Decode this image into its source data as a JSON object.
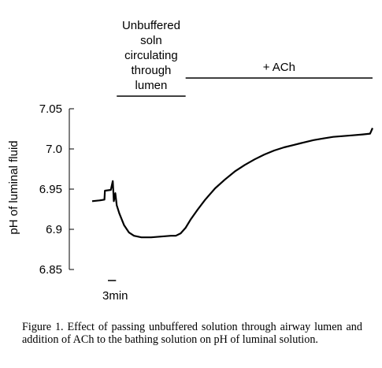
{
  "chart_data": {
    "type": "line",
    "ylabel": "pH of luminal fluid",
    "yticks": [
      "7.05",
      "7.0",
      "6.95",
      "6.9",
      "6.85"
    ],
    "ytick_values": [
      7.05,
      7.0,
      6.95,
      6.9,
      6.85
    ],
    "ylim": [
      6.85,
      7.05
    ],
    "xlim_min": [
      0,
      57
    ],
    "scale_bar": {
      "label": "3min",
      "minutes": 3
    },
    "annotations": [
      {
        "label_lines": [
          "Unbuffered",
          "soln",
          "circulating",
          "through",
          "lumen"
        ],
        "start_min": 5,
        "end_min": 19
      },
      {
        "label_lines": [
          "+ ACh"
        ],
        "start_min": 19,
        "end_min": 57
      }
    ],
    "series": [
      {
        "values_min_ph": [
          [
            0.0,
            6.935
          ],
          [
            1.5,
            6.936
          ],
          [
            2.5,
            6.937
          ],
          [
            2.6,
            6.948
          ],
          [
            3.8,
            6.949
          ],
          [
            4.2,
            6.96
          ],
          [
            4.4,
            6.935
          ],
          [
            4.7,
            6.945
          ],
          [
            5.0,
            6.93
          ],
          [
            5.5,
            6.92
          ],
          [
            6.5,
            6.905
          ],
          [
            7.5,
            6.896
          ],
          [
            8.5,
            6.892
          ],
          [
            10,
            6.89
          ],
          [
            12,
            6.89
          ],
          [
            14,
            6.891
          ],
          [
            16,
            6.892
          ],
          [
            17,
            6.892
          ],
          [
            18,
            6.895
          ],
          [
            19,
            6.902
          ],
          [
            20,
            6.912
          ],
          [
            21.5,
            6.925
          ],
          [
            23,
            6.937
          ],
          [
            25,
            6.951
          ],
          [
            27,
            6.962
          ],
          [
            29,
            6.972
          ],
          [
            31,
            6.98
          ],
          [
            33,
            6.987
          ],
          [
            35,
            6.993
          ],
          [
            37,
            6.998
          ],
          [
            39,
            7.002
          ],
          [
            41,
            7.005
          ],
          [
            43,
            7.008
          ],
          [
            45,
            7.011
          ],
          [
            47,
            7.013
          ],
          [
            49,
            7.015
          ],
          [
            51,
            7.016
          ],
          [
            53,
            7.017
          ],
          [
            55,
            7.018
          ],
          [
            56.5,
            7.019
          ],
          [
            57,
            7.026
          ]
        ]
      }
    ]
  },
  "caption": "Figure 1. Effect of passing unbuffered solution through airway lumen and addition of ACh to the bathing solution on pH of luminal solution."
}
